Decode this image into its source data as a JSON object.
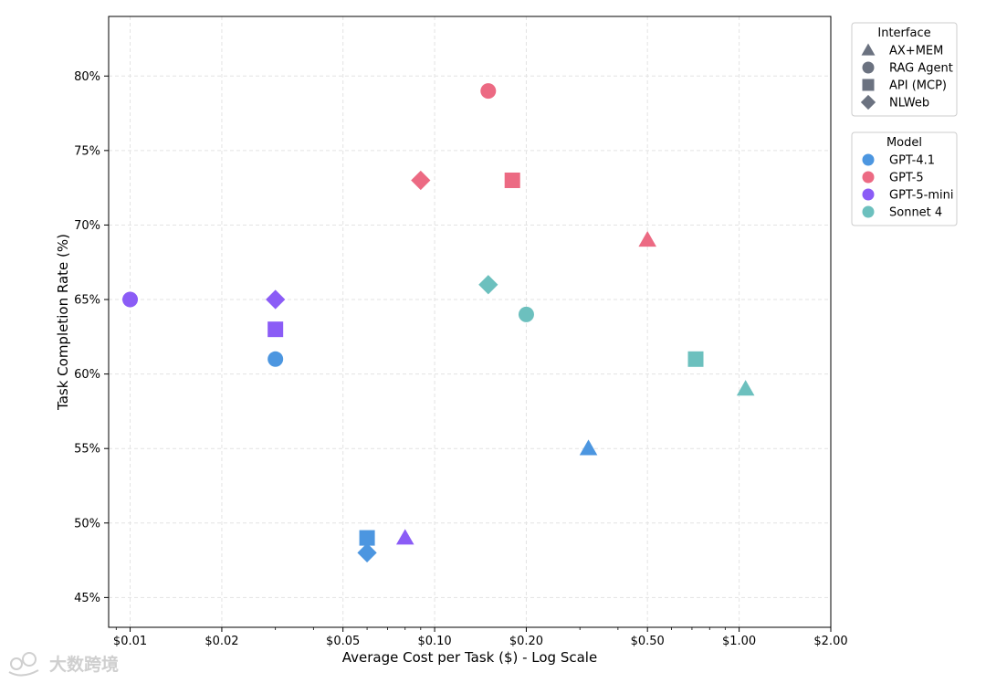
{
  "chart_data": {
    "type": "scatter",
    "title": "",
    "xlabel": "Average Cost per Task ($) - Log Scale",
    "ylabel": "Task Completion Rate (%)",
    "x_scale": "log",
    "xlim": [
      0.0085,
      2.0
    ],
    "ylim": [
      43.0,
      84.0
    ],
    "grid": true,
    "x_ticks": [
      {
        "value": 0.01,
        "label": "$0.01"
      },
      {
        "value": 0.02,
        "label": "$0.02"
      },
      {
        "value": 0.05,
        "label": "$0.05"
      },
      {
        "value": 0.1,
        "label": "$0.10"
      },
      {
        "value": 0.2,
        "label": "$0.20"
      },
      {
        "value": 0.5,
        "label": "$0.50"
      },
      {
        "value": 1.0,
        "label": "$1.00"
      },
      {
        "value": 2.0,
        "label": "$2.00"
      }
    ],
    "y_ticks": [
      {
        "value": 45,
        "label": "45%"
      },
      {
        "value": 50,
        "label": "50%"
      },
      {
        "value": 55,
        "label": "55%"
      },
      {
        "value": 60,
        "label": "60%"
      },
      {
        "value": 65,
        "label": "65%"
      },
      {
        "value": 70,
        "label": "70%"
      },
      {
        "value": 75,
        "label": "75%"
      },
      {
        "value": 80,
        "label": "80%"
      }
    ],
    "models": [
      {
        "name": "GPT-4.1",
        "color": "#4C96E0"
      },
      {
        "name": "GPT-5",
        "color": "#EC6A83"
      },
      {
        "name": "GPT-5-mini",
        "color": "#8B5CF6"
      },
      {
        "name": "Sonnet 4",
        "color": "#6CC0BE"
      }
    ],
    "interfaces": [
      {
        "name": "AX+MEM",
        "marker": "triangle"
      },
      {
        "name": "RAG Agent",
        "marker": "circle"
      },
      {
        "name": "API (MCP)",
        "marker": "square"
      },
      {
        "name": "NLWeb",
        "marker": "diamond"
      }
    ],
    "points": [
      {
        "model": "GPT-4.1",
        "interface": "AX+MEM",
        "x": 0.32,
        "y": 55
      },
      {
        "model": "GPT-4.1",
        "interface": "RAG Agent",
        "x": 0.03,
        "y": 61
      },
      {
        "model": "GPT-4.1",
        "interface": "API (MCP)",
        "x": 0.06,
        "y": 49
      },
      {
        "model": "GPT-4.1",
        "interface": "NLWeb",
        "x": 0.06,
        "y": 48
      },
      {
        "model": "GPT-5",
        "interface": "AX+MEM",
        "x": 0.5,
        "y": 69
      },
      {
        "model": "GPT-5",
        "interface": "RAG Agent",
        "x": 0.15,
        "y": 79
      },
      {
        "model": "GPT-5",
        "interface": "API (MCP)",
        "x": 0.18,
        "y": 73
      },
      {
        "model": "GPT-5",
        "interface": "NLWeb",
        "x": 0.09,
        "y": 73
      },
      {
        "model": "GPT-5-mini",
        "interface": "AX+MEM",
        "x": 0.08,
        "y": 49
      },
      {
        "model": "GPT-5-mini",
        "interface": "RAG Agent",
        "x": 0.01,
        "y": 65
      },
      {
        "model": "GPT-5-mini",
        "interface": "API (MCP)",
        "x": 0.03,
        "y": 63
      },
      {
        "model": "GPT-5-mini",
        "interface": "NLWeb",
        "x": 0.03,
        "y": 65
      },
      {
        "model": "Sonnet 4",
        "interface": "AX+MEM",
        "x": 1.05,
        "y": 59
      },
      {
        "model": "Sonnet 4",
        "interface": "RAG Agent",
        "x": 0.2,
        "y": 64
      },
      {
        "model": "Sonnet 4",
        "interface": "API (MCP)",
        "x": 0.72,
        "y": 61
      },
      {
        "model": "Sonnet 4",
        "interface": "NLWeb",
        "x": 0.15,
        "y": 66
      }
    ],
    "legend_interface": {
      "title": "Interface",
      "position": "top-right outside",
      "marker_color": "#6B7280"
    },
    "legend_model": {
      "title": "Model",
      "position": "right outside"
    }
  },
  "watermark": {
    "text": "大数跨境"
  }
}
